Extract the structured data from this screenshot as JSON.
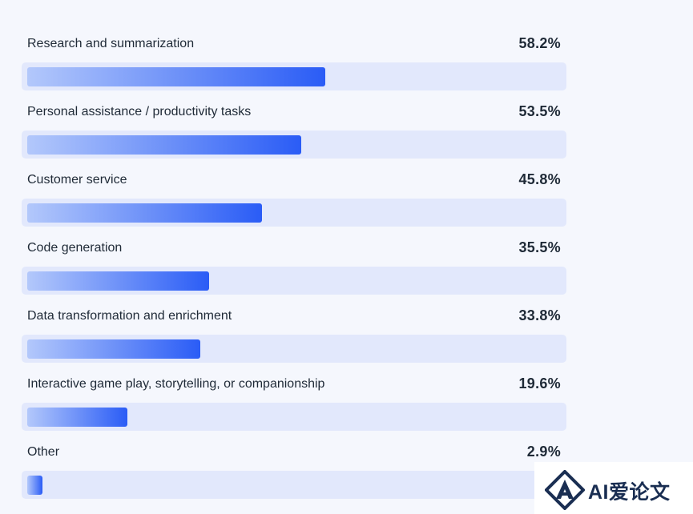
{
  "chart_data": {
    "type": "bar",
    "orientation": "horizontal",
    "categories": [
      "Research and summarization",
      "Personal assistance / productivity tasks",
      "Customer service",
      "Code generation",
      "Data transformation and enrichment",
      "Interactive game play, storytelling, or companionship",
      "Other"
    ],
    "values": [
      58.2,
      53.5,
      45.8,
      35.5,
      33.8,
      19.6,
      2.9
    ],
    "value_labels": [
      "58.2%",
      "53.5%",
      "45.8%",
      "35.5%",
      "33.8%",
      "19.6%",
      "2.9%"
    ],
    "unit": "%",
    "xlim": [
      0,
      100
    ],
    "grid": false,
    "legend": "none",
    "colors": {
      "bar_start": "#b3c8fb",
      "bar_end": "#2a5cf6",
      "track": "#e2e8fc",
      "text": "#1f2a37"
    }
  },
  "watermark": {
    "text": "AI爱论文",
    "logo_icon": "a-diamond-logo"
  }
}
